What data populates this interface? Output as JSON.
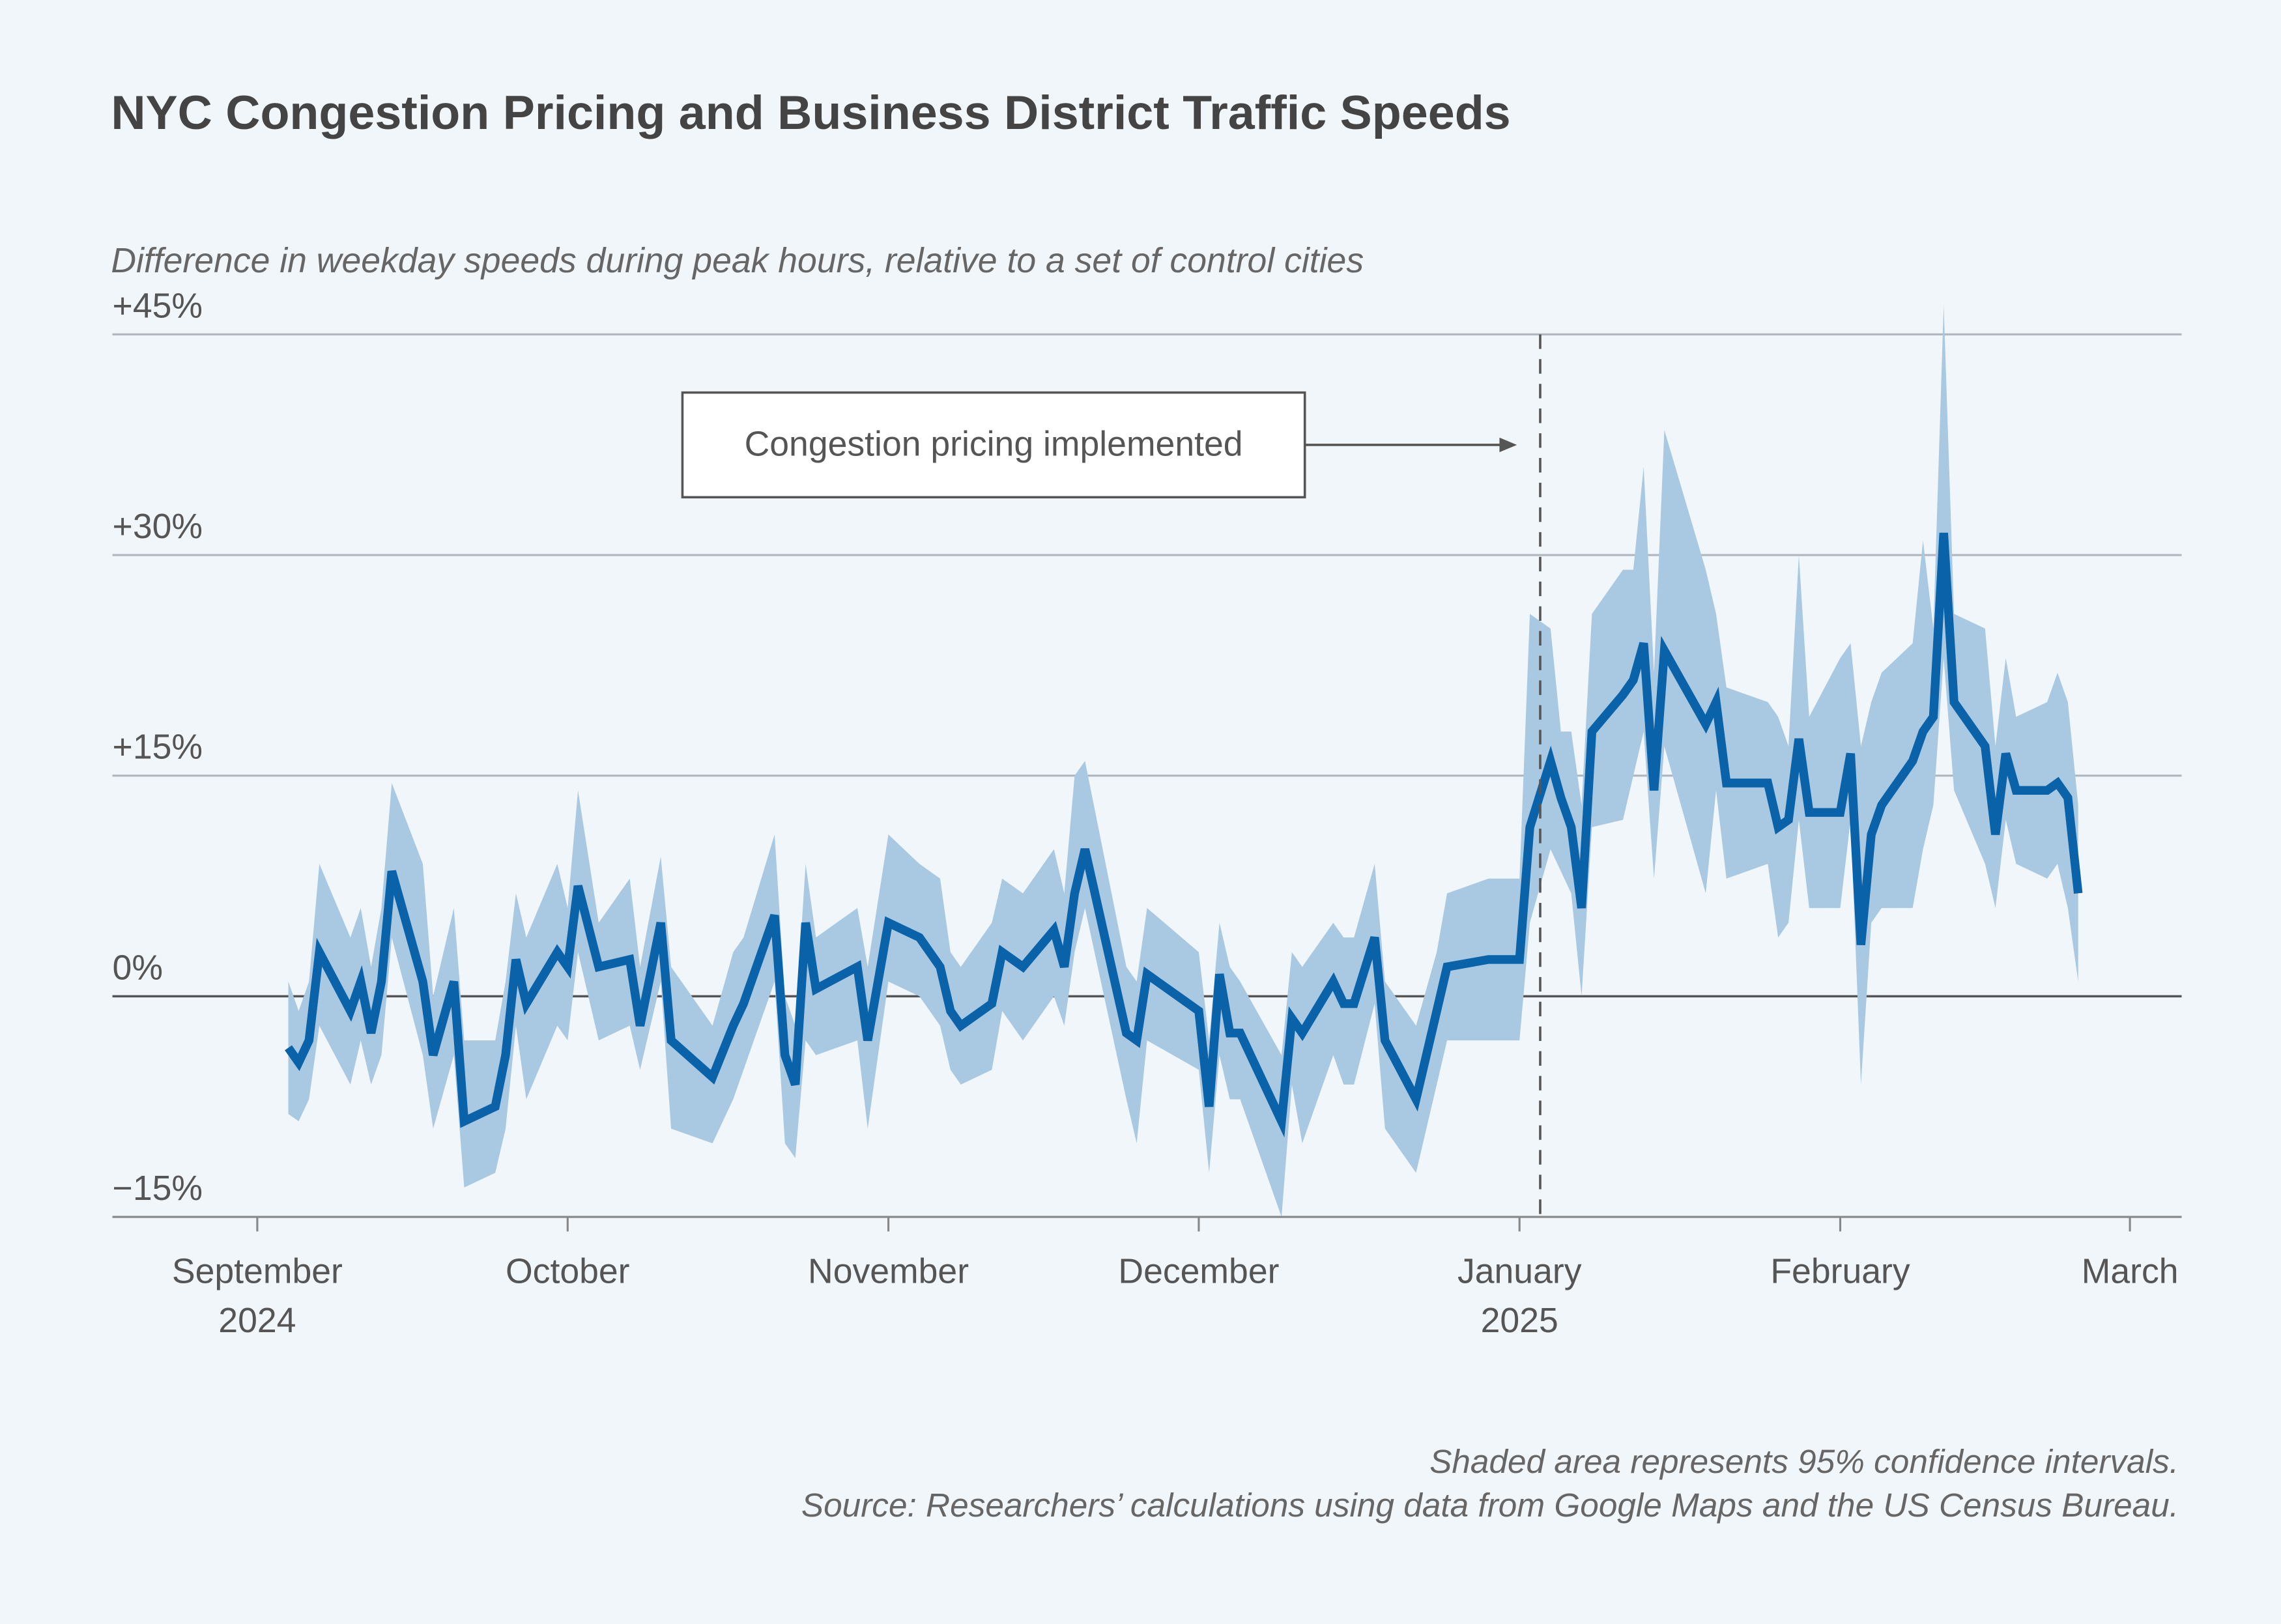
{
  "chart_data": {
    "type": "line_band",
    "title": "NYC Congestion Pricing and Business District Traffic Speeds",
    "subtitle": "Difference in weekday speeds during peak hours, relative to a set of control cities",
    "notes": [
      "Shaded area represents 95% confidence intervals.",
      "Source: Researchers’ calculations using data from Google Maps and the US Census Bureau."
    ],
    "annotation": {
      "text": "Congestion pricing implemented",
      "x": 124
    },
    "color": "#0a62a8",
    "band_color": "#a9c8e2",
    "xlim": [
      -14,
      186
    ],
    "xticks": [
      {
        "value": 0,
        "label": "September",
        "sublabel": "2024"
      },
      {
        "value": 30,
        "label": "October"
      },
      {
        "value": 61,
        "label": "November"
      },
      {
        "value": 91,
        "label": "December"
      },
      {
        "value": 122,
        "label": "January",
        "sublabel": "2025"
      },
      {
        "value": 153,
        "label": "February"
      },
      {
        "value": 181,
        "label": "March"
      }
    ],
    "ylim": [
      -15,
      45
    ],
    "yticks": [
      {
        "value": -15,
        "label": "−15%"
      },
      {
        "value": 0,
        "label": "0%"
      },
      {
        "value": 15,
        "label": "+15%"
      },
      {
        "value": 30,
        "label": "+30%"
      },
      {
        "value": 45,
        "label": "+45%"
      }
    ],
    "grid": true,
    "x": [
      3,
      4,
      5,
      6,
      9,
      10,
      11,
      12,
      13,
      16,
      17,
      19,
      20,
      23,
      24,
      25,
      26,
      29,
      30,
      31,
      33,
      36,
      37,
      39,
      40,
      44,
      46,
      47,
      50,
      51,
      52,
      53,
      54,
      58,
      59,
      61,
      64,
      66,
      67,
      68,
      71,
      72,
      74,
      77,
      78,
      79,
      80,
      84,
      85,
      86,
      91,
      92,
      93,
      94,
      95,
      99,
      100,
      101,
      104,
      105,
      106,
      108,
      109,
      112,
      114,
      115,
      119,
      122,
      123,
      125,
      126,
      127,
      128,
      129,
      132,
      133,
      134,
      135,
      136,
      140,
      141,
      142,
      146,
      147,
      148,
      149,
      150,
      153,
      154,
      155,
      156,
      157,
      160,
      161,
      162,
      163,
      164,
      167,
      168,
      169,
      170,
      173,
      174,
      175,
      176
    ],
    "values": [
      -3.5,
      -4.5,
      -3,
      3,
      -1,
      1,
      -2.5,
      1,
      8.5,
      1,
      -4,
      1,
      -8.5,
      -7.5,
      -4,
      2.5,
      -0.5,
      3,
      2,
      7.5,
      2,
      2.5,
      -2,
      5,
      -3,
      -5.5,
      -2,
      -0.5,
      5.5,
      -4,
      -6,
      5,
      0.5,
      2,
      -3,
      5,
      4,
      2,
      -1,
      -2,
      -0.5,
      3,
      2,
      4.5,
      2,
      7,
      10,
      -2.5,
      -3,
      1.5,
      -1,
      -7.5,
      1.5,
      -2.5,
      -2.5,
      -8.5,
      -1.5,
      -2.5,
      1,
      -0.5,
      -0.5,
      4,
      -3,
      -7,
      -1,
      2,
      2.5,
      2.5,
      11.5,
      16,
      13.5,
      11.5,
      6,
      18,
      20.5,
      21.5,
      24,
      14,
      23.5,
      18.5,
      20,
      14.5,
      14.5,
      11.5,
      12,
      17.5,
      12.5,
      12.5,
      16.5,
      3.5,
      11,
      13,
      16,
      18,
      19,
      31.5,
      20,
      17,
      11,
      16.5,
      14,
      14,
      14.5,
      13.5,
      7
    ],
    "ci_lower": [
      -8,
      -8.5,
      -7,
      -2,
      -6,
      -3,
      -6,
      -4,
      4,
      -4,
      -9,
      -4,
      -13,
      -12,
      -9,
      -2,
      -7,
      -2,
      -3,
      3,
      -3,
      -2,
      -5,
      1,
      -9,
      -10,
      -7,
      -5,
      1,
      -10,
      -11,
      -3,
      -4,
      -3,
      -9,
      1,
      0,
      -2,
      -5,
      -6,
      -5,
      -1,
      -3,
      0,
      -2,
      3,
      6,
      -7,
      -10,
      -3,
      -5,
      -12,
      -4,
      -7,
      -7,
      -15,
      -6,
      -10,
      -4,
      -6,
      -6,
      -0.5,
      -9,
      -12,
      -6,
      -3,
      -3,
      -3,
      5,
      10,
      8.5,
      7,
      0,
      11.5,
      12,
      15,
      18,
      8,
      17,
      7,
      14,
      8,
      9,
      4,
      5,
      12,
      6,
      6,
      12,
      -6,
      5,
      6,
      6,
      10,
      13,
      23,
      14,
      9,
      6,
      12,
      9,
      8,
      9,
      6,
      1
    ],
    "ci_upper": [
      1,
      -1,
      1,
      9,
      4,
      6,
      2,
      6,
      14.5,
      9,
      0,
      6,
      -3,
      -3,
      1,
      7,
      4,
      9,
      6,
      14,
      5,
      8,
      2,
      9.5,
      2,
      -2,
      3,
      4,
      11,
      0,
      -2,
      9,
      4,
      6,
      2,
      11,
      9,
      8,
      3,
      2,
      5,
      8,
      7,
      10,
      7,
      15,
      16,
      2,
      1,
      6,
      3,
      -3,
      5,
      2,
      1,
      -4,
      3,
      2,
      5,
      4,
      4,
      9,
      1,
      -2,
      3,
      7,
      8,
      8,
      26,
      25,
      18,
      18,
      13,
      26,
      29,
      29,
      36,
      22,
      38.5,
      29,
      26,
      21,
      20,
      19,
      17,
      30,
      19,
      23,
      24,
      17,
      20,
      22,
      24,
      31,
      25,
      47,
      26,
      25,
      17,
      23,
      19,
      20,
      22,
      20,
      13
    ]
  }
}
